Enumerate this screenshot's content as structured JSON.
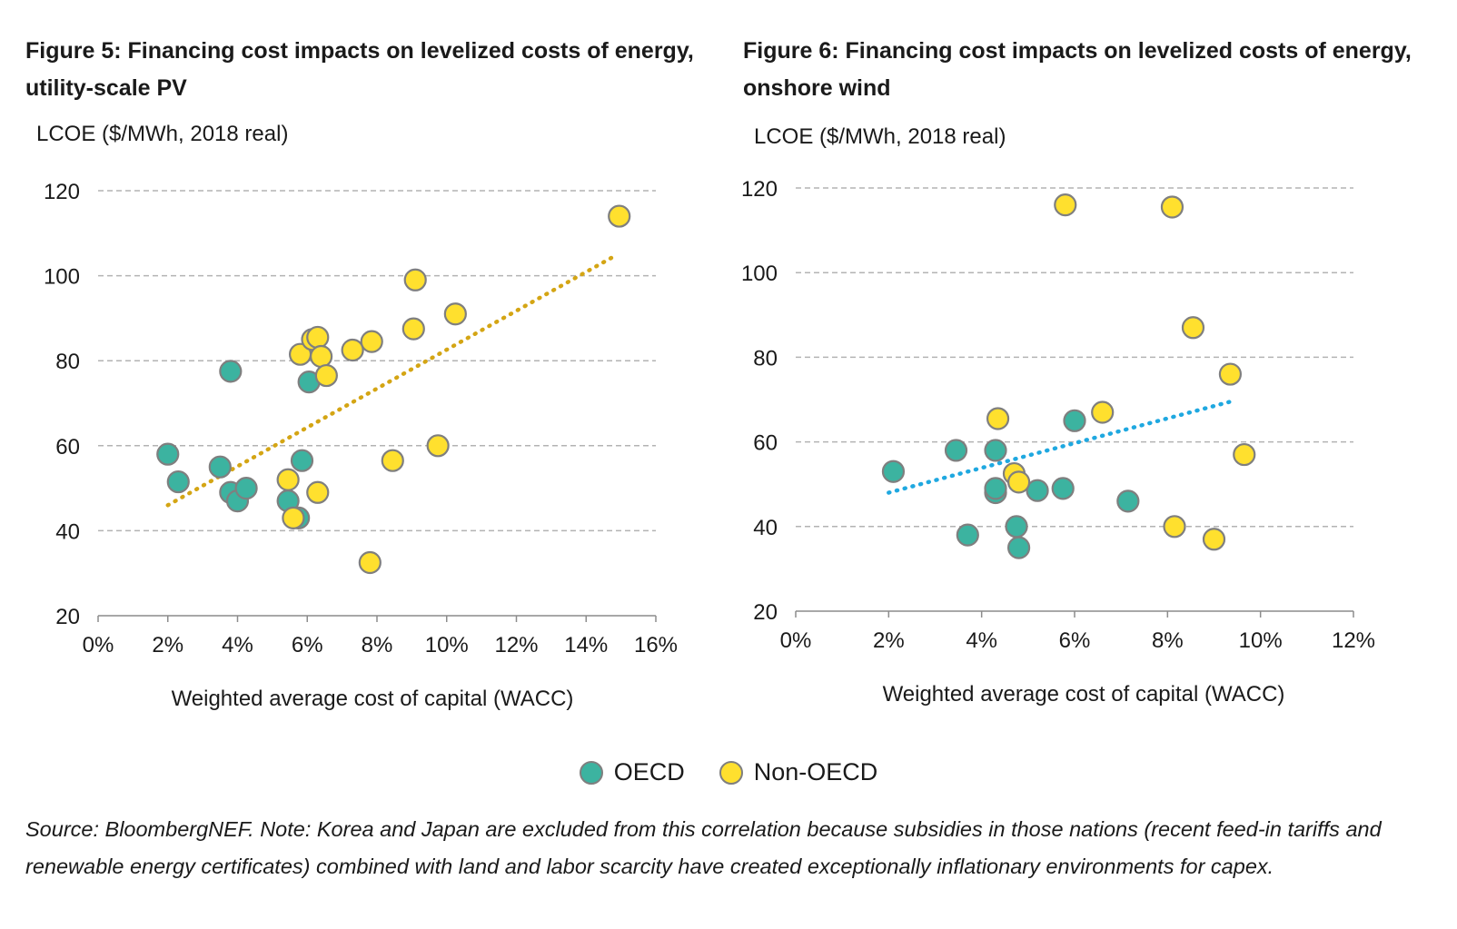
{
  "legend": {
    "oecd_label": "OECD",
    "non_oecd_label": "Non-OECD",
    "oecd_color": "#3cb3a0",
    "non_oecd_color": "#ffe02e"
  },
  "source_text": "Source: BloombergNEF. Note: Korea and Japan are excluded from this correlation because subsidies in those nations (recent feed-in tariffs and renewable energy certificates) combined with land and labor scarcity have created exceptionally inflationary environments for capex.",
  "chart_data": [
    {
      "type": "scatter",
      "title": "Figure 5: Financing cost impacts on levelized costs of energy, utility-scale PV",
      "ylabel": "LCOE ($/MWh, 2018 real)",
      "xlabel": "Weighted average cost of capital (WACC)",
      "xlim": [
        0,
        16
      ],
      "ylim": [
        20,
        120
      ],
      "x_ticks": [
        "0%",
        "2%",
        "4%",
        "6%",
        "8%",
        "10%",
        "12%",
        "14%",
        "16%"
      ],
      "y_ticks": [
        "20",
        "40",
        "60",
        "80",
        "100",
        "120"
      ],
      "grid": true,
      "trendline": {
        "color": "#d4a514",
        "x": [
          2.0,
          14.9
        ],
        "y": [
          46,
          105
        ]
      },
      "series": [
        {
          "name": "OECD",
          "color": "#3cb3a0",
          "points": [
            [
              2.0,
              58
            ],
            [
              2.3,
              51.5
            ],
            [
              3.5,
              55
            ],
            [
              3.8,
              77.5
            ],
            [
              3.8,
              49
            ],
            [
              4.0,
              47
            ],
            [
              4.25,
              50
            ],
            [
              5.45,
              47
            ],
            [
              5.75,
              43
            ],
            [
              5.85,
              56.5
            ],
            [
              6.05,
              75
            ]
          ]
        },
        {
          "name": "Non-OECD",
          "color": "#ffe02e",
          "points": [
            [
              5.45,
              52
            ],
            [
              5.6,
              43
            ],
            [
              5.8,
              81.5
            ],
            [
              6.15,
              85
            ],
            [
              6.3,
              85.5
            ],
            [
              6.3,
              49
            ],
            [
              6.4,
              81
            ],
            [
              6.55,
              76.5
            ],
            [
              7.3,
              82.5
            ],
            [
              7.85,
              84.5
            ],
            [
              7.8,
              32.5
            ],
            [
              8.45,
              56.5
            ],
            [
              9.05,
              87.5
            ],
            [
              9.1,
              99
            ],
            [
              9.75,
              60
            ],
            [
              10.25,
              91
            ],
            [
              14.95,
              114
            ]
          ]
        }
      ]
    },
    {
      "type": "scatter",
      "title": "Figure 6: Financing cost impacts on levelized costs of energy, onshore wind",
      "ylabel": "LCOE ($/MWh, 2018 real)",
      "xlabel": "Weighted average cost of capital (WACC)",
      "xlim": [
        0,
        12
      ],
      "ylim": [
        20,
        120
      ],
      "x_ticks": [
        "0%",
        "2%",
        "4%",
        "6%",
        "8%",
        "10%",
        "12%"
      ],
      "y_ticks": [
        "20",
        "40",
        "60",
        "80",
        "100",
        "120"
      ],
      "grid": true,
      "trendline": {
        "color": "#1fa8e0",
        "x": [
          2.0,
          9.35
        ],
        "y": [
          48,
          69.5
        ]
      },
      "series": [
        {
          "name": "OECD",
          "color": "#3cb3a0",
          "points": [
            [
              2.1,
              53
            ],
            [
              3.45,
              58
            ],
            [
              3.7,
              38
            ],
            [
              4.3,
              58
            ],
            [
              4.3,
              48
            ],
            [
              4.3,
              49
            ],
            [
              4.75,
              40
            ],
            [
              4.8,
              35
            ],
            [
              5.2,
              48.5
            ],
            [
              5.75,
              49
            ],
            [
              6.0,
              65
            ],
            [
              7.15,
              46
            ]
          ]
        },
        {
          "name": "Non-OECD",
          "color": "#ffe02e",
          "points": [
            [
              4.35,
              65.5
            ],
            [
              4.7,
              52.5
            ],
            [
              4.8,
              50.5
            ],
            [
              5.8,
              116
            ],
            [
              6.6,
              67
            ],
            [
              8.1,
              115.5
            ],
            [
              8.15,
              40
            ],
            [
              8.55,
              87
            ],
            [
              9.0,
              37
            ],
            [
              9.35,
              76
            ],
            [
              9.65,
              57
            ]
          ]
        }
      ]
    }
  ]
}
